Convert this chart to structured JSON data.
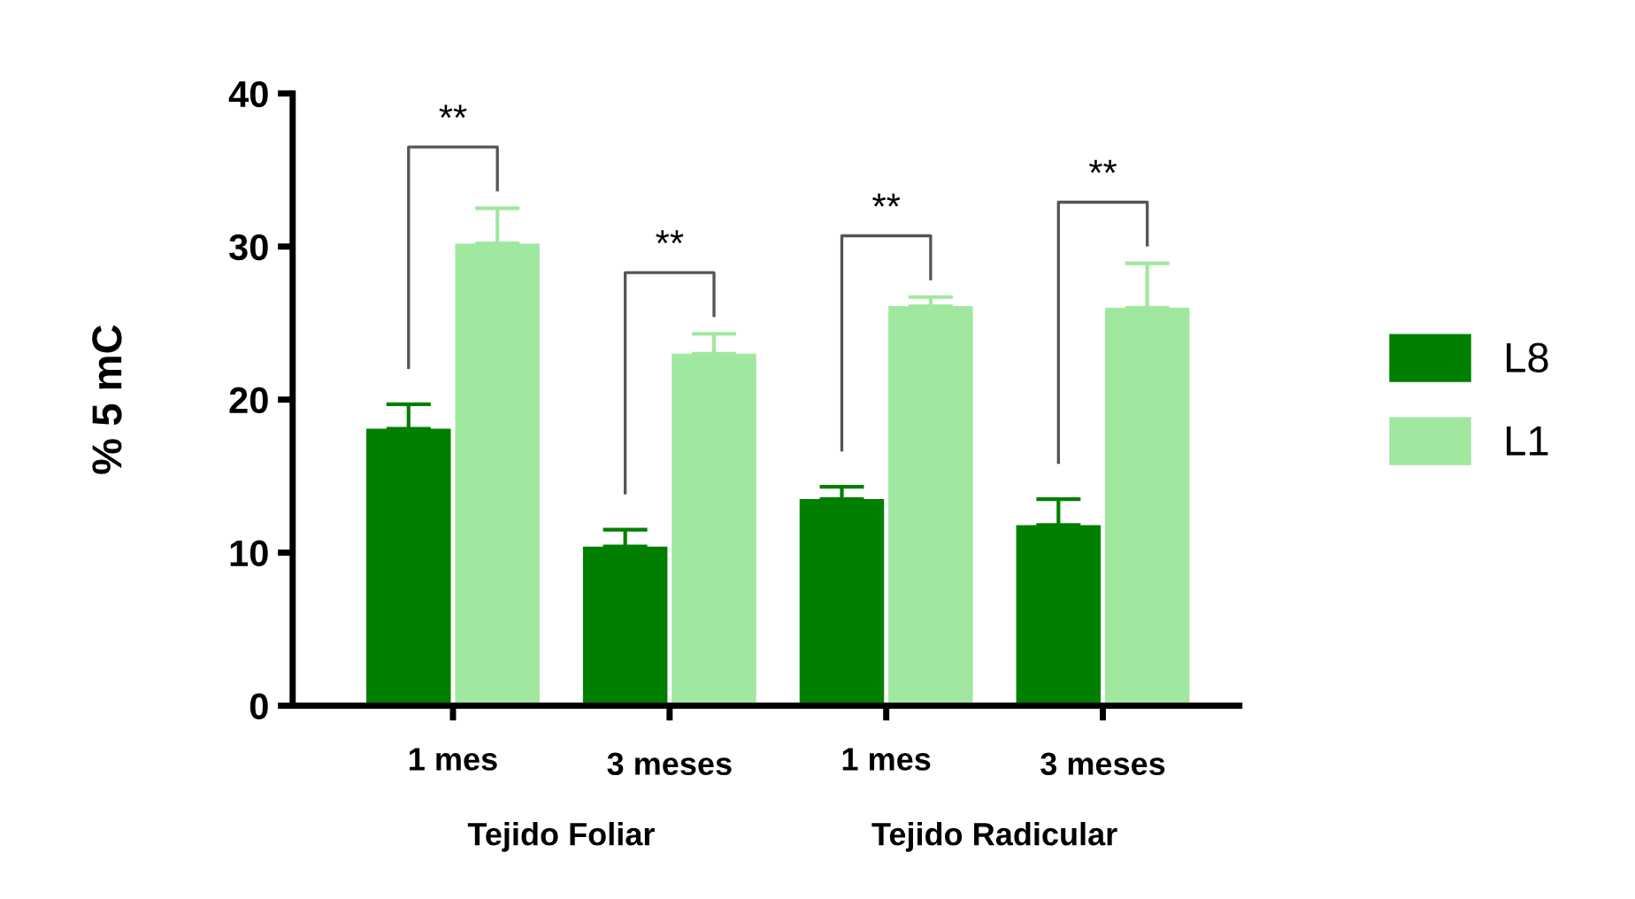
{
  "chart_data": {
    "type": "bar",
    "ylabel": "% 5 mC",
    "categories": [
      "1 mes",
      "3 meses",
      "1 mes",
      "3 meses"
    ],
    "series": [
      {
        "name": "L8",
        "color": "#007f00",
        "values": [
          18.1,
          10.4,
          13.5,
          11.8
        ],
        "errors": [
          [
            18.1,
            19.7
          ],
          [
            10.4,
            11.5
          ],
          [
            13.5,
            14.3
          ],
          [
            11.8,
            13.5
          ]
        ]
      },
      {
        "name": "L1",
        "color": "#a0e8a0",
        "values": [
          30.2,
          23.0,
          26.1,
          26.0
        ],
        "errors": [
          [
            30.2,
            32.5
          ],
          [
            23.0,
            24.3
          ],
          [
            26.1,
            26.7
          ],
          [
            26.0,
            28.9
          ]
        ]
      }
    ],
    "ylim": [
      0,
      40
    ],
    "yticks": [
      0,
      10,
      20,
      30,
      40
    ],
    "grid": false,
    "legend": "right",
    "annotations": [
      "**",
      "**",
      "**",
      "**",
      "Tejido Foliar",
      "Tejido Radicular"
    ]
  }
}
